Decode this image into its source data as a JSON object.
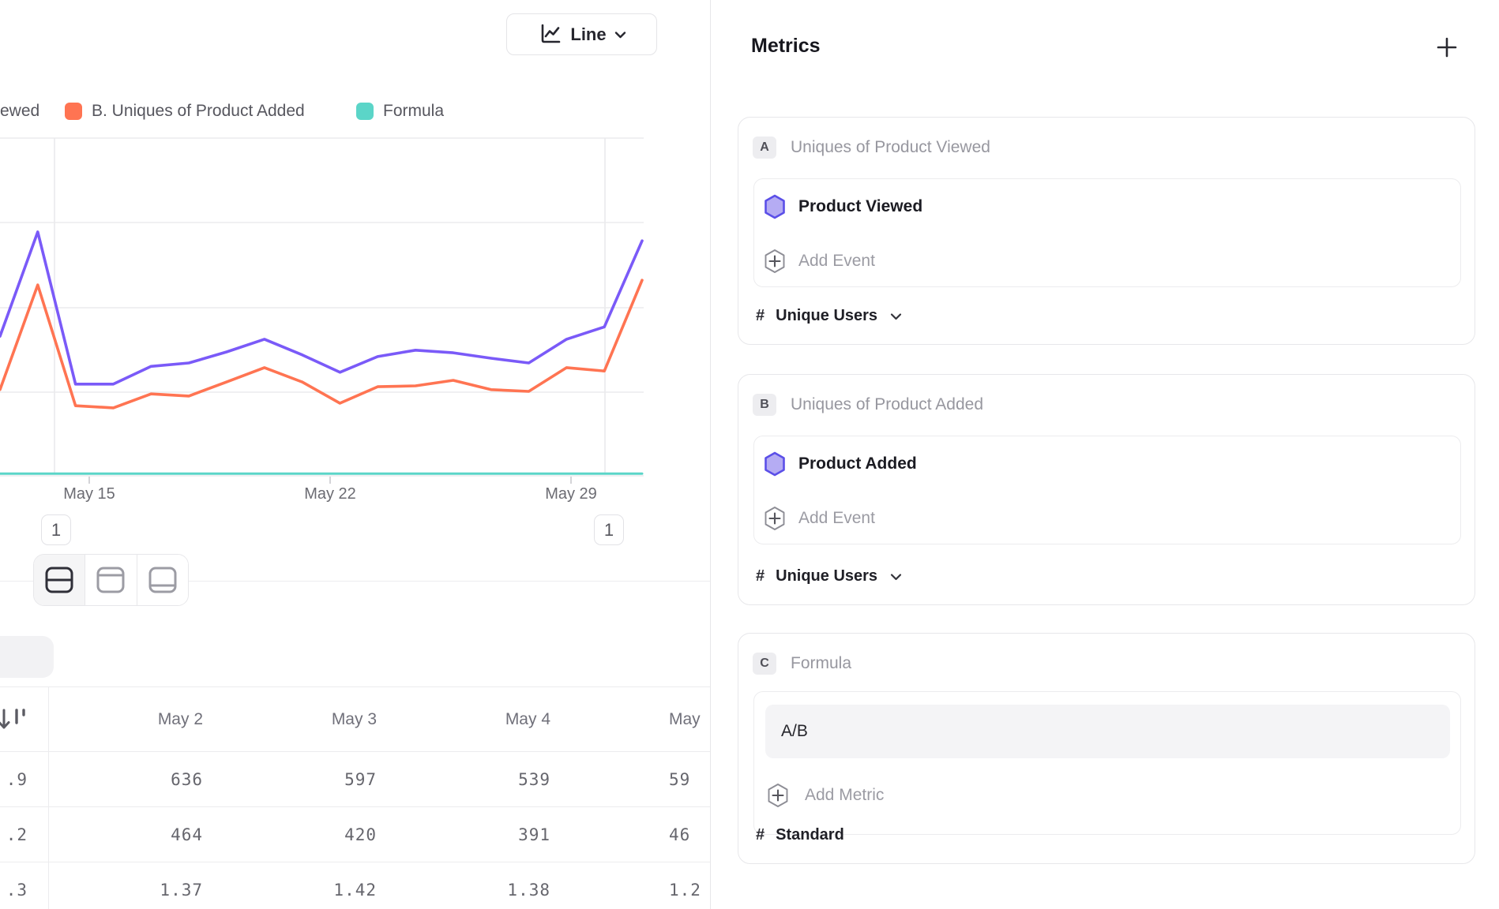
{
  "toolbar": {
    "chart_type_label": "Line"
  },
  "legend": {
    "items": [
      {
        "label": "ewed",
        "note": "cut off at left edge; tail of 'A. Uniques of Product Viewed'"
      },
      {
        "label": "B. Uniques of Product Added",
        "color": "#FF7452"
      },
      {
        "label": "Formula",
        "color": "#5BD5C8"
      }
    ]
  },
  "chart_data": {
    "type": "line",
    "x_tick_labels": [
      "May 15",
      "May 22",
      "May 29"
    ],
    "x_estimated_span": "daily points, ~May 12 - May 31 (left/right edges cropped)",
    "y_axis": "cropped off-screen; gridlines every ~200 units, baseline 0",
    "ylim_estimate": [
      0,
      800
    ],
    "values_are_estimates": true,
    "series": [
      {
        "name": "A. Uniques of Product Viewed",
        "color": "#7A5AF8",
        "values": [
          331,
          577,
          218,
          218,
          260,
          268,
          294,
          324,
          287,
          246,
          283,
          298,
          292,
          279,
          268,
          324,
          353,
          556
        ]
      },
      {
        "name": "B. Uniques of Product Added",
        "color": "#FF7452",
        "values": [
          205,
          452,
          167,
          162,
          195,
          190,
          223,
          257,
          223,
          173,
          212,
          214,
          227,
          205,
          201,
          257,
          249,
          463
        ]
      },
      {
        "name": "Formula",
        "color": "#5BD5C8",
        "values": [
          1.4,
          1.4,
          1.4,
          1.4,
          1.4,
          1.4,
          1.4,
          1.4,
          1.4,
          1.4,
          1.4,
          1.4,
          1.4,
          1.4,
          1.4,
          1.4,
          1.4,
          1.4
        ]
      }
    ],
    "annotation_badges": [
      "1",
      "1"
    ],
    "legend_position": "top"
  },
  "layout_toggle": {
    "options": [
      {
        "icon": "split-horizontal"
      },
      {
        "icon": "panel-top"
      },
      {
        "icon": "panel-bottom"
      }
    ],
    "active_index": 0
  },
  "table": {
    "headers": [
      "",
      "May 2",
      "May 3",
      "May 4",
      "May"
    ],
    "rows": [
      [
        ".9",
        "636",
        "597",
        "539",
        "59"
      ],
      [
        ".2",
        "464",
        "420",
        "391",
        "46"
      ],
      [
        ".3",
        "1.37",
        "1.42",
        "1.38",
        "1.2"
      ]
    ],
    "note": "left column and right column cropped at screen edges"
  },
  "metrics": {
    "title": "Metrics",
    "add_button": "+",
    "cards": [
      {
        "badge": "A",
        "title": "Uniques of Product Viewed",
        "event": "Product Viewed",
        "add_event_label": "Add Event",
        "measure_symbol": "#",
        "measure_label": "Unique Users",
        "measure_has_dropdown": true
      },
      {
        "badge": "B",
        "title": "Uniques of Product Added",
        "event": "Product Added",
        "add_event_label": "Add Event",
        "measure_symbol": "#",
        "measure_label": "Unique Users",
        "measure_has_dropdown": true
      },
      {
        "badge": "C",
        "title": "Formula",
        "formula_value": "A/B",
        "add_metric_label": "Add Metric",
        "measure_symbol": "#",
        "measure_label": "Standard",
        "measure_has_dropdown": false
      }
    ]
  },
  "colors": {
    "series_a_purple": "#7A5AF8",
    "series_b_orange": "#FF7452",
    "series_c_teal": "#5BD5C8",
    "event_hexagon_fill": "#B5ACF3",
    "event_hexagon_border": "#5B4FE8",
    "gridline": "#ebebed"
  }
}
